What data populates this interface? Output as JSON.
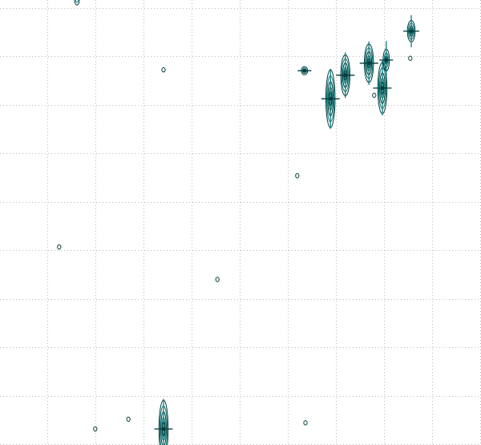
{
  "chart_data": {
    "type": "scatter",
    "title": "",
    "xlabel": "",
    "ylabel": "",
    "grid": true,
    "grid_style": "dotted",
    "xlim": [
      0,
      100
    ],
    "ylim": [
      0,
      100
    ],
    "x_gridlines": [
      0,
      10,
      20,
      30,
      40,
      50,
      60,
      70,
      80,
      90,
      100
    ],
    "y_gridlines": [
      0,
      10.9,
      21.8,
      32.7,
      43.6,
      54.5,
      65.4,
      76.3,
      87.2,
      98.1
    ],
    "colors": {
      "contour_dark": "#003a3a",
      "contour_teal": "#0a7a7a",
      "grid": "#b8b8b8"
    },
    "peaks": [
      {
        "x": 63.3,
        "y": 84.1,
        "intensity": 3,
        "elongation": 1.0
      },
      {
        "x": 68.7,
        "y": 77.8,
        "intensity": 5,
        "elongation": 4.5
      },
      {
        "x": 71.8,
        "y": 83.1,
        "intensity": 5,
        "elongation": 3.2
      },
      {
        "x": 76.7,
        "y": 85.8,
        "intensity": 5,
        "elongation": 3.0
      },
      {
        "x": 79.5,
        "y": 80.2,
        "intensity": 5,
        "elongation": 4.0
      },
      {
        "x": 80.3,
        "y": 86.5,
        "intensity": 3,
        "elongation": 2.5
      },
      {
        "x": 85.5,
        "y": 93.0,
        "intensity": 4,
        "elongation": 2.0
      },
      {
        "x": 77.8,
        "y": 78.6,
        "intensity": 1,
        "elongation": 1.0
      },
      {
        "x": 85.3,
        "y": 86.9,
        "intensity": 1,
        "elongation": 1.0
      },
      {
        "x": 34.0,
        "y": 84.3,
        "intensity": 1,
        "elongation": 1.0
      },
      {
        "x": 61.8,
        "y": 60.5,
        "intensity": 1,
        "elongation": 1.0
      },
      {
        "x": 12.3,
        "y": 44.5,
        "intensity": 1,
        "elongation": 1.0
      },
      {
        "x": 45.2,
        "y": 37.2,
        "intensity": 1,
        "elongation": 1.0
      },
      {
        "x": 34.0,
        "y": 3.6,
        "intensity": 5,
        "elongation": 4.5
      },
      {
        "x": 26.7,
        "y": 5.8,
        "intensity": 1,
        "elongation": 1.0
      },
      {
        "x": 19.8,
        "y": 3.6,
        "intensity": 1,
        "elongation": 1.0
      },
      {
        "x": 63.5,
        "y": 5.0,
        "intensity": 1,
        "elongation": 1.0
      },
      {
        "x": 16.0,
        "y": 100.0,
        "intensity": 2,
        "elongation": 1.5
      }
    ]
  }
}
